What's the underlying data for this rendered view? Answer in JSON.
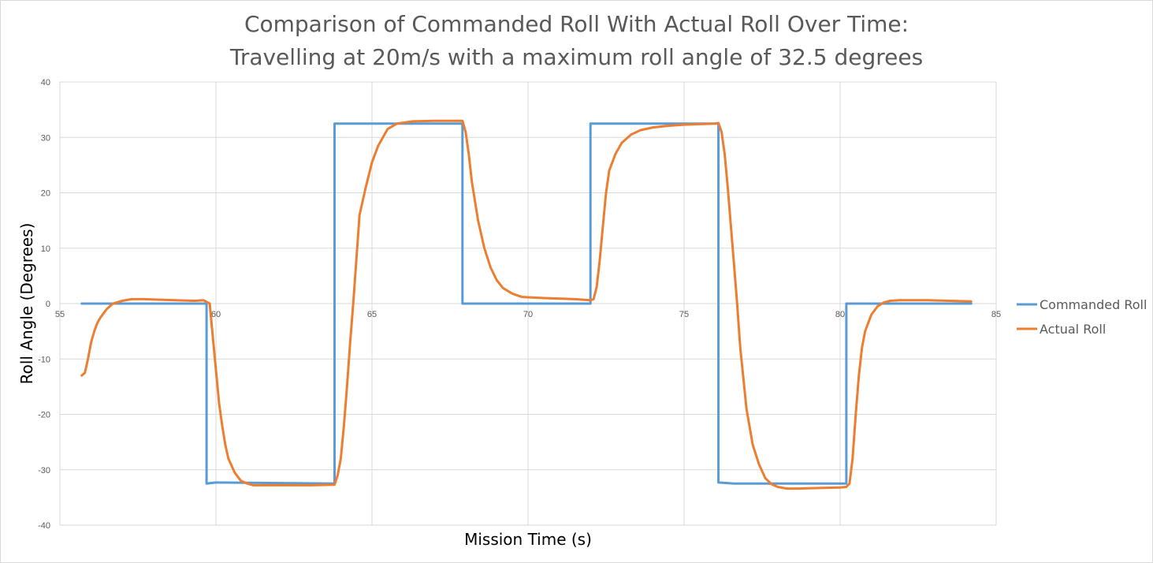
{
  "chart_data": {
    "type": "line",
    "title_line1": "Comparison of Commanded Roll With Actual Roll Over Time:",
    "title_line2": "Travelling at 20m/s with a maximum roll angle of 32.5 degrees",
    "xlabel": "Mission Time (s)",
    "ylabel": "Roll Angle (Degrees)",
    "xlim": [
      55,
      85
    ],
    "ylim": [
      -40,
      40
    ],
    "xticks": [
      55,
      60,
      65,
      70,
      75,
      80,
      85
    ],
    "yticks": [
      40,
      30,
      20,
      10,
      0,
      -10,
      -20,
      -30,
      -40
    ],
    "grid": true,
    "legend_position": "right",
    "series": [
      {
        "name": "Commanded Roll",
        "color": "#5B9BD5",
        "x": [
          55.7,
          59.7,
          59.7,
          60.0,
          63.8,
          63.8,
          67.9,
          67.9,
          72.0,
          72.0,
          76.1,
          76.1,
          76.6,
          80.2,
          80.2,
          84.2
        ],
        "y": [
          0,
          0,
          -32.5,
          -32.3,
          -32.5,
          32.5,
          32.5,
          0,
          0,
          32.5,
          32.5,
          -32.3,
          -32.5,
          -32.5,
          0,
          0
        ]
      },
      {
        "name": "Actual Roll",
        "color": "#ED7D31",
        "x": [
          55.7,
          55.8,
          55.9,
          56.0,
          56.1,
          56.2,
          56.3,
          56.5,
          56.7,
          57.0,
          57.3,
          57.7,
          58.2,
          59.3,
          59.6,
          59.8,
          59.9,
          60.0,
          60.1,
          60.2,
          60.3,
          60.4,
          60.6,
          60.8,
          61.0,
          61.2,
          61.5,
          62.0,
          63.0,
          63.8,
          63.9,
          64.0,
          64.1,
          64.2,
          64.3,
          64.4,
          64.5,
          64.6,
          64.8,
          65.0,
          65.2,
          65.5,
          65.8,
          66.3,
          67.0,
          67.9,
          68.0,
          68.1,
          68.2,
          68.4,
          68.6,
          68.8,
          69.0,
          69.2,
          69.5,
          69.8,
          70.5,
          71.5,
          72.0,
          72.1,
          72.2,
          72.3,
          72.4,
          72.5,
          72.6,
          72.8,
          73.0,
          73.3,
          73.6,
          74.0,
          74.5,
          75.0,
          75.5,
          76.0,
          76.1,
          76.2,
          76.3,
          76.4,
          76.5,
          76.6,
          76.7,
          76.8,
          77.0,
          77.2,
          77.4,
          77.6,
          77.8,
          78.0,
          78.3,
          78.7,
          79.3,
          80.0,
          80.2,
          80.3,
          80.4,
          80.5,
          80.6,
          80.7,
          80.8,
          81.0,
          81.2,
          81.4,
          81.6,
          81.9,
          82.3,
          82.8,
          83.5,
          84.2
        ],
        "y": [
          -13,
          -12.5,
          -10,
          -7,
          -5,
          -3.5,
          -2.5,
          -1,
          0,
          0.5,
          0.8,
          0.8,
          0.7,
          0.5,
          0.6,
          0,
          -6,
          -12,
          -18,
          -22,
          -25.5,
          -28,
          -30.5,
          -32,
          -32.5,
          -32.8,
          -32.8,
          -32.8,
          -32.8,
          -32.7,
          -31,
          -28,
          -22,
          -15,
          -7,
          0,
          8,
          16,
          21,
          25.5,
          28.5,
          31.5,
          32.5,
          32.9,
          33.0,
          33.0,
          31,
          27,
          22,
          15,
          10,
          6.5,
          4.2,
          2.8,
          1.8,
          1.2,
          1.0,
          0.8,
          0.6,
          0.8,
          3,
          8,
          14,
          20,
          24,
          27,
          29,
          30.5,
          31.3,
          31.8,
          32.1,
          32.3,
          32.4,
          32.5,
          32.6,
          31,
          27,
          21,
          14,
          7,
          0,
          -8,
          -19,
          -25.5,
          -29,
          -31.5,
          -32.6,
          -33.1,
          -33.4,
          -33.4,
          -33.3,
          -33.2,
          -33.1,
          -32.5,
          -28,
          -20,
          -13,
          -8,
          -5,
          -2,
          -0.5,
          0.2,
          0.5,
          0.6,
          0.6,
          0.6,
          0.5,
          0.4
        ]
      }
    ]
  }
}
